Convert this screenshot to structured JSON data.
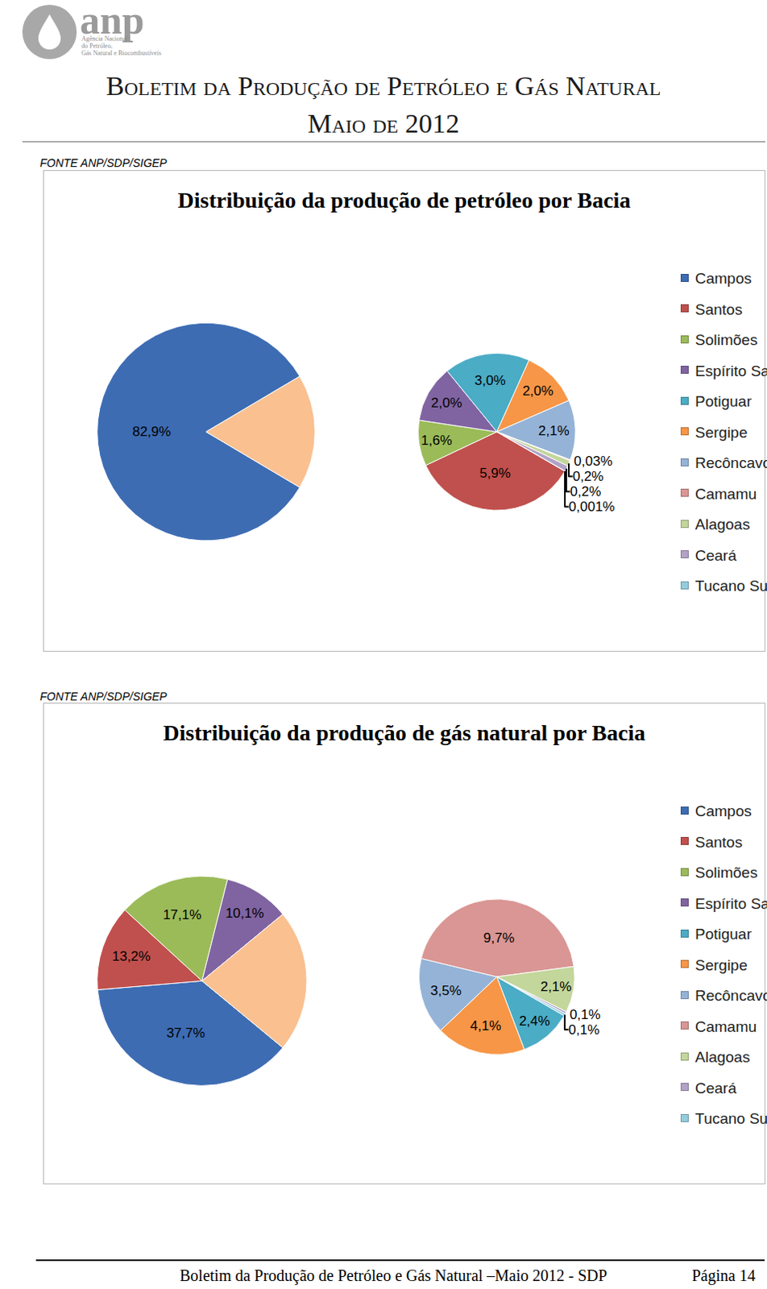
{
  "header": {
    "logo": {
      "text": "anp",
      "lines": [
        "Agência Nacional",
        "do Petróleo,",
        "Gás Natural e Biocombustíveis"
      ]
    },
    "title": "Boletim da Produção de Petróleo e Gás Natural",
    "subtitle": "Maio de 2012"
  },
  "chart_data": [
    {
      "type": "pie",
      "source": "FONTE ANP/SDP/SIGEP",
      "title": "Distribuição da produção de petróleo por Bacia",
      "categories": [
        "Campos",
        "Santos",
        "Solimões",
        "Espírito Santo",
        "Potiguar",
        "Sergipe",
        "Recôncavo",
        "Camamu",
        "Alagoas",
        "Ceará",
        "Tucano Sul"
      ],
      "values": [
        82.9,
        5.9,
        1.6,
        2.0,
        3.0,
        2.0,
        2.1,
        0.03,
        0.2,
        0.2,
        0.001
      ],
      "value_labels": [
        "82,9%",
        "5,9%",
        "1,6%",
        "2,0%",
        "3,0%",
        "2,0%",
        "2,1%",
        "0,03%",
        "0,2%",
        "0,2%",
        "0,001%"
      ],
      "colors": [
        "#3d6cb3",
        "#c0504d",
        "#9bbb59",
        "#8064a2",
        "#4bacc6",
        "#f79646",
        "#95b3d7",
        "#d99694",
        "#c3d69b",
        "#b3a2c7",
        "#93cddd"
      ],
      "secondary": [
        "Santos",
        "Solimões",
        "Espírito Santo",
        "Potiguar",
        "Sergipe",
        "Recôncavo",
        "Camamu",
        "Alagoas",
        "Ceará",
        "Tucano Sul"
      ],
      "data_labels": true,
      "legend": "right"
    },
    {
      "type": "pie",
      "source": "FONTE ANP/SDP/SIGEP",
      "title": "Distribuição da produção de gás natural por Bacia",
      "categories": [
        "Campos",
        "Santos",
        "Solimões",
        "Espírito Santo",
        "Potiguar",
        "Sergipe",
        "Recôncavo",
        "Camamu",
        "Alagoas",
        "Ceará",
        "Tucano Sul"
      ],
      "values": [
        37.7,
        13.2,
        17.1,
        10.1,
        2.4,
        4.1,
        3.5,
        9.7,
        2.1,
        0.1,
        0.1
      ],
      "value_labels": [
        "37,7%",
        "13,2%",
        "17,1%",
        "10,1%",
        "2,4%",
        "4,1%",
        "3,5%",
        "9,7%",
        "2,1%",
        "0,1%",
        "0,1%"
      ],
      "colors": [
        "#3d6cb3",
        "#c0504d",
        "#9bbb59",
        "#8064a2",
        "#4bacc6",
        "#f79646",
        "#95b3d7",
        "#d99694",
        "#c3d69b",
        "#b3a2c7",
        "#93cddd"
      ],
      "secondary": [
        "Potiguar",
        "Sergipe",
        "Recôncavo",
        "Camamu",
        "Alagoas",
        "Ceará",
        "Tucano Sul"
      ],
      "data_labels": true,
      "legend": "right"
    }
  ],
  "footer": {
    "text": "Boletim da Produção de Petróleo e Gás Natural –Maio 2012 - SDP",
    "page": "Página 14"
  }
}
